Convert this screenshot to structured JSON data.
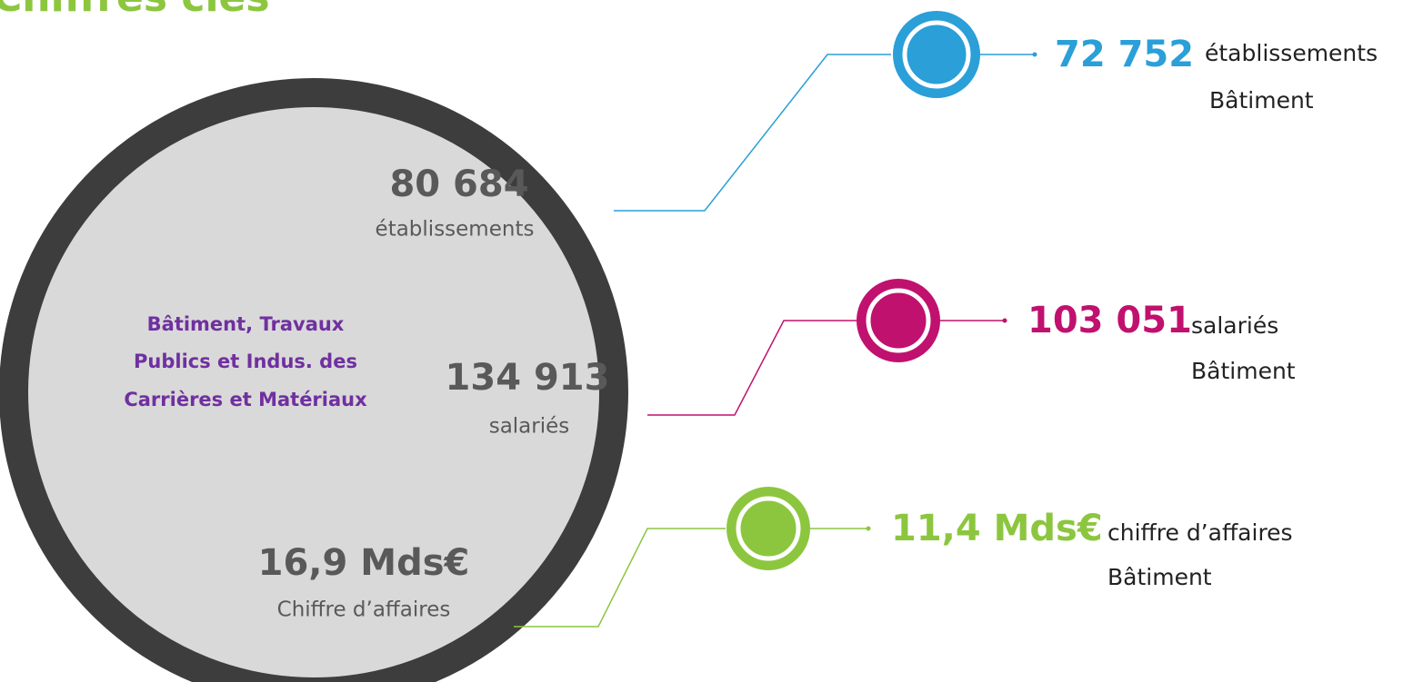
{
  "title": "Chiffres clés",
  "center": {
    "label": [
      "Bâtiment, Travaux",
      "Publics et Indus. des",
      "Carrières et Matériaux"
    ],
    "stats": [
      {
        "value": "80 684",
        "label": "établissements"
      },
      {
        "value": "134 913",
        "label": "salariés"
      },
      {
        "value": "16,9 Mds€",
        "label": "Chiffre d’affaires"
      }
    ]
  },
  "items": [
    {
      "value": "72 752",
      "label": "établissements",
      "sub": "Bâtiment"
    },
    {
      "value": "103 051",
      "label": "salariés",
      "sub": "Bâtiment"
    },
    {
      "value": "11,4 Mds€",
      "label": "chiffre d’affaires",
      "sub": "Bâtiment"
    }
  ]
}
